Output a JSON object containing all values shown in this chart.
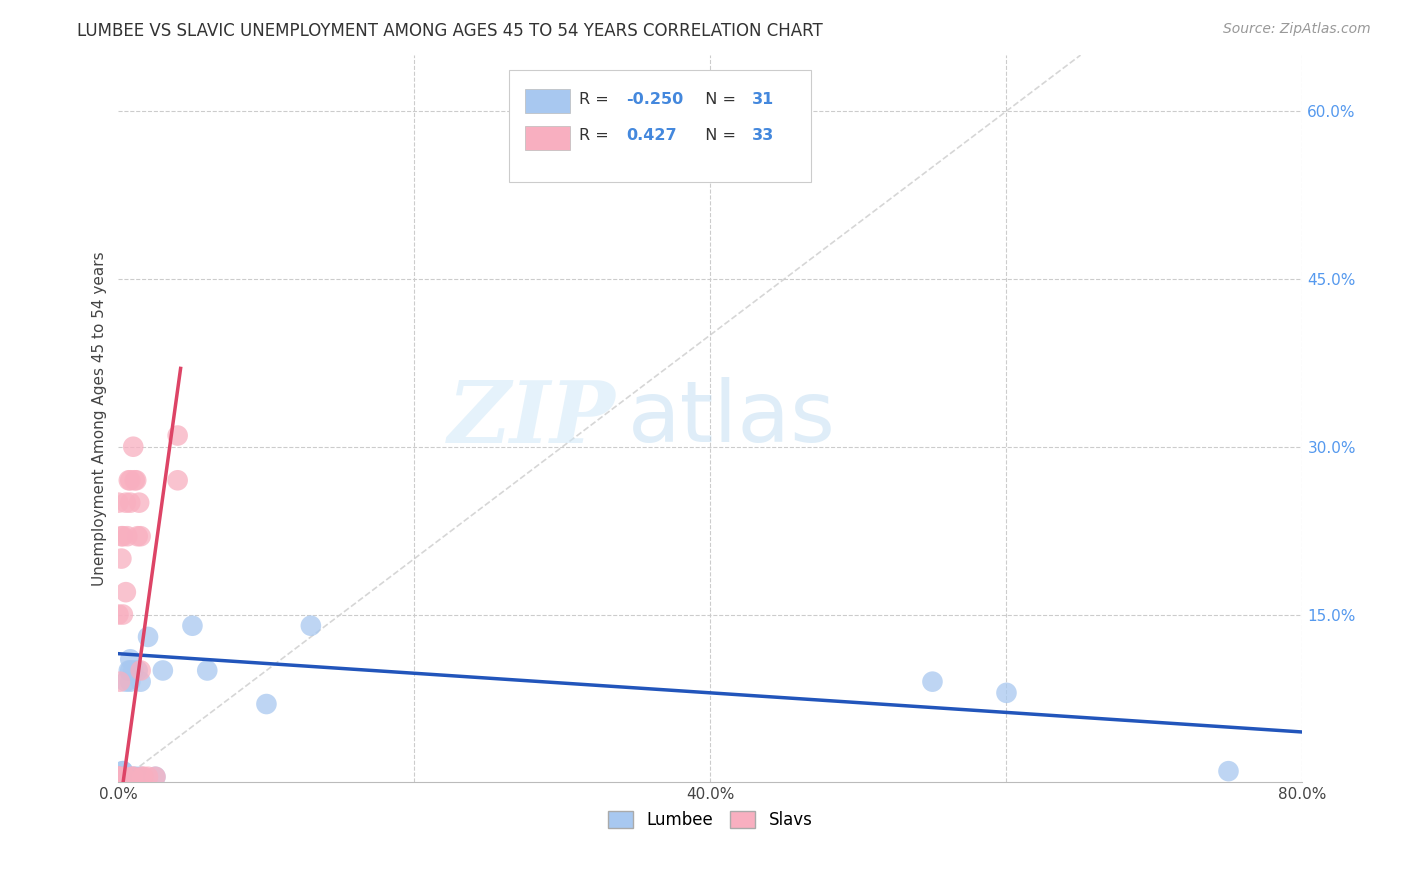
{
  "title": "LUMBEE VS SLAVIC UNEMPLOYMENT AMONG AGES 45 TO 54 YEARS CORRELATION CHART",
  "source": "Source: ZipAtlas.com",
  "ylabel": "Unemployment Among Ages 45 to 54 years",
  "xlim": [
    0.0,
    0.8
  ],
  "ylim": [
    0.0,
    0.65
  ],
  "xticks": [
    0.0,
    0.2,
    0.4,
    0.6,
    0.8
  ],
  "xticklabels": [
    "0.0%",
    "",
    "40.0%",
    "",
    "80.0%"
  ],
  "yticks_right": [
    0.15,
    0.3,
    0.45,
    0.6
  ],
  "yticklabels_right": [
    "15.0%",
    "30.0%",
    "45.0%",
    "60.0%"
  ],
  "lumbee_color": "#a8c8f0",
  "slavs_color": "#f8afc0",
  "lumbee_line_color": "#2255bb",
  "slavs_line_color": "#dd4466",
  "diagonal_color": "#cccccc",
  "lumbee_x": [
    0.0,
    0.0,
    0.0,
    0.0,
    0.002,
    0.002,
    0.003,
    0.003,
    0.005,
    0.005,
    0.005,
    0.007,
    0.007,
    0.008,
    0.008,
    0.008,
    0.01,
    0.01,
    0.012,
    0.013,
    0.015,
    0.015,
    0.02,
    0.025,
    0.03,
    0.05,
    0.06,
    0.1,
    0.13,
    0.55,
    0.6,
    0.75
  ],
  "lumbee_y": [
    0.005,
    0.005,
    0.005,
    0.005,
    0.005,
    0.005,
    0.01,
    0.01,
    0.005,
    0.005,
    0.09,
    0.005,
    0.1,
    0.09,
    0.1,
    0.11,
    0.005,
    0.1,
    0.005,
    0.1,
    0.005,
    0.09,
    0.13,
    0.005,
    0.1,
    0.14,
    0.1,
    0.07,
    0.14,
    0.09,
    0.08,
    0.01
  ],
  "slavs_x": [
    0.0,
    0.0,
    0.0,
    0.0,
    0.0,
    0.001,
    0.001,
    0.002,
    0.002,
    0.003,
    0.003,
    0.004,
    0.005,
    0.005,
    0.006,
    0.007,
    0.008,
    0.008,
    0.009,
    0.01,
    0.01,
    0.011,
    0.012,
    0.013,
    0.014,
    0.015,
    0.015,
    0.016,
    0.017,
    0.02,
    0.025,
    0.04,
    0.04
  ],
  "slavs_y": [
    0.005,
    0.005,
    0.005,
    0.15,
    0.25,
    0.005,
    0.09,
    0.2,
    0.22,
    0.15,
    0.22,
    0.005,
    0.17,
    0.25,
    0.22,
    0.27,
    0.25,
    0.27,
    0.005,
    0.005,
    0.3,
    0.27,
    0.27,
    0.22,
    0.25,
    0.22,
    0.1,
    0.005,
    0.005,
    0.005,
    0.005,
    0.27,
    0.31
  ],
  "watermark_zip": "ZIP",
  "watermark_atlas": "atlas",
  "background_color": "#ffffff",
  "grid_color": "#cccccc"
}
